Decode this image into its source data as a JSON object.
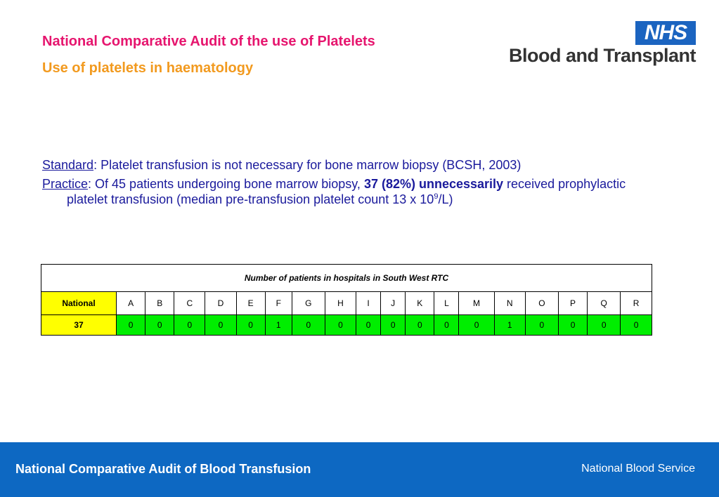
{
  "header": {
    "title": "National Comparative Audit of the use of Platelets",
    "subtitle": "Use of platelets in haematology"
  },
  "logo": {
    "badge": "NHS",
    "name": "Blood and Transplant"
  },
  "standard": {
    "label": "Standard",
    "sep": ":",
    "text": " Platelet transfusion is not necessary for bone marrow biopsy (BCSH, 2003)"
  },
  "practice": {
    "label": "Practice",
    "text_before": ":  Of 45 patients undergoing bone marrow biopsy, ",
    "highlight": "37 (82%) unnecessarily",
    "text_after": " received prophylactic platelet transfusion (median pre-transfusion platelet count 13 x 10",
    "superscript": "9",
    "text_end": "/L)"
  },
  "table": {
    "caption": "Number of patients in hospitals in South West RTC",
    "national_label": "National",
    "national_value": "37",
    "hospitals": [
      "A",
      "B",
      "C",
      "D",
      "E",
      "F",
      "G",
      "H",
      "I",
      "J",
      "K",
      "L",
      "M",
      "N",
      "O",
      "P",
      "Q",
      "R"
    ],
    "values": [
      "0",
      "0",
      "0",
      "0",
      "0",
      "1",
      "0",
      "0",
      "0",
      "0",
      "0",
      "0",
      "0",
      "1",
      "0",
      "0",
      "0",
      "0"
    ]
  },
  "footer": {
    "left": "National Comparative Audit of Blood Transfusion",
    "right": "National Blood Service"
  },
  "colors": {
    "title": "#e6156e",
    "subtitle": "#f29a1f",
    "body_text": "#1a1a9c",
    "footer_bg": "#0d68c2",
    "nhs_blue": "#1b64c0",
    "national_cell": "#ffff00",
    "value_cell": "#00ee00"
  }
}
